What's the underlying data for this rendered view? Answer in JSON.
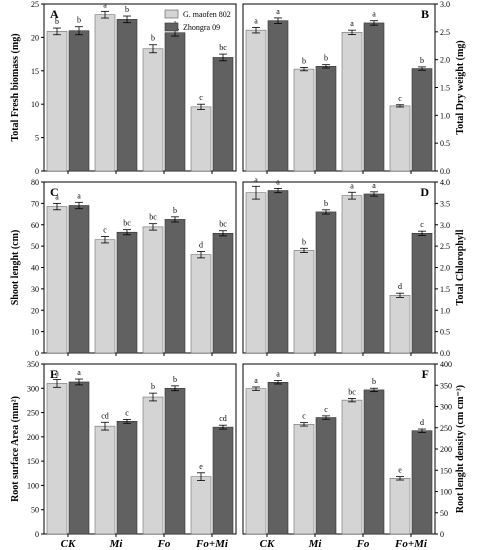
{
  "figure": {
    "categories": [
      "CK",
      "Mi",
      "Fo",
      "Fo+Mi"
    ],
    "legend": [
      "G. maofen 802",
      "Zhongra 09"
    ],
    "colors": {
      "light": "#d4d4d4",
      "dark": "#616161",
      "axis": "#000000"
    }
  },
  "chart_data": [
    {
      "type": "bar",
      "panel": "A",
      "side": "left",
      "ylabel": "Total Fresh biomass (mg)",
      "ylim": [
        0,
        25
      ],
      "yticks": [
        0,
        5,
        10,
        15,
        20,
        25
      ],
      "categories": [
        "CK",
        "Mi",
        "Fo",
        "Fo+Mi"
      ],
      "series": [
        {
          "name": "G. maofen 802",
          "values": [
            20.9,
            23.4,
            18.3,
            9.6
          ],
          "errors": [
            0.5,
            0.5,
            0.6,
            0.4
          ],
          "letters": [
            "b",
            "a",
            "b",
            "c"
          ]
        },
        {
          "name": "Zhongra 09",
          "values": [
            21.0,
            22.7,
            20.7,
            17.0
          ],
          "errors": [
            0.6,
            0.5,
            0.5,
            0.5
          ],
          "letters": [
            "b",
            "b",
            "a",
            "bc"
          ]
        }
      ]
    },
    {
      "type": "bar",
      "panel": "B",
      "side": "right",
      "ylabel": "Total Dry weight (mg)",
      "ylim": [
        0,
        3.0
      ],
      "yticks": [
        0.0,
        0.5,
        1.0,
        1.5,
        2.0,
        2.5,
        3.0
      ],
      "categories": [
        "CK",
        "Mi",
        "Fo",
        "Fo+Mi"
      ],
      "series": [
        {
          "name": "G. maofen 802",
          "values": [
            2.53,
            1.83,
            2.49,
            1.17
          ],
          "errors": [
            0.05,
            0.03,
            0.04,
            0.02
          ],
          "letters": [
            "a",
            "b",
            "a",
            "c"
          ]
        },
        {
          "name": "Zhongra 09",
          "values": [
            2.7,
            1.88,
            2.66,
            1.84
          ],
          "errors": [
            0.05,
            0.03,
            0.04,
            0.03
          ],
          "letters": [
            "a",
            "b",
            "a",
            "b"
          ]
        }
      ]
    },
    {
      "type": "bar",
      "panel": "C",
      "side": "left",
      "ylabel": "Shoot lenght (cm)",
      "ylim": [
        0,
        80
      ],
      "yticks": [
        0,
        10,
        20,
        30,
        40,
        50,
        60,
        70,
        80
      ],
      "categories": [
        "CK",
        "Mi",
        "Fo",
        "Fo+Mi"
      ],
      "series": [
        {
          "name": "G. maofen 802",
          "values": [
            68.5,
            53.0,
            59.0,
            46.0
          ],
          "errors": [
            1.5,
            1.5,
            1.5,
            1.5
          ],
          "letters": [
            "a",
            "c",
            "bc",
            "d"
          ]
        },
        {
          "name": "Zhongra 09",
          "values": [
            69.0,
            56.5,
            62.5,
            56.0
          ],
          "errors": [
            1.5,
            1.2,
            1.2,
            1.2
          ],
          "letters": [
            "a",
            "bc",
            "b",
            "bc"
          ]
        }
      ]
    },
    {
      "type": "bar",
      "panel": "D",
      "side": "right",
      "ylabel": "Total Chlorophyll",
      "ylim": [
        0,
        4.0
      ],
      "yticks": [
        0.0,
        0.5,
        1.0,
        1.5,
        2.0,
        2.5,
        3.0,
        3.5,
        4.0
      ],
      "categories": [
        "CK",
        "Mi",
        "Fo",
        "Fo+Mi"
      ],
      "series": [
        {
          "name": "G. maofen 802",
          "values": [
            3.75,
            2.4,
            3.68,
            1.35
          ],
          "errors": [
            0.15,
            0.05,
            0.08,
            0.05
          ],
          "letters": [
            "a",
            "b",
            "a",
            "d"
          ]
        },
        {
          "name": "Zhongra 09",
          "values": [
            3.8,
            3.3,
            3.72,
            2.8
          ],
          "errors": [
            0.05,
            0.05,
            0.05,
            0.05
          ],
          "letters": [
            "a",
            "b",
            "a",
            "c"
          ]
        }
      ]
    },
    {
      "type": "bar",
      "panel": "E",
      "side": "left",
      "ylabel": "Root surface Area (mm²)",
      "ylim": [
        0,
        350
      ],
      "yticks": [
        0,
        50,
        100,
        150,
        200,
        250,
        300,
        350
      ],
      "categories": [
        "CK",
        "Mi",
        "Fo",
        "Fo+Mi"
      ],
      "series": [
        {
          "name": "G. maofen 802",
          "values": [
            310,
            222,
            282,
            118
          ],
          "errors": [
            8,
            8,
            8,
            8
          ],
          "letters": [
            "a",
            "cd",
            "b",
            "e"
          ]
        },
        {
          "name": "Zhongra 09",
          "values": [
            313,
            232,
            300,
            220
          ],
          "errors": [
            6,
            4,
            5,
            4
          ],
          "letters": [
            "a",
            "c",
            "b",
            "cd"
          ]
        }
      ]
    },
    {
      "type": "bar",
      "panel": "F",
      "side": "right",
      "ylabel": "Root lenght density (cm cm⁻³)",
      "ylim": [
        0,
        400
      ],
      "yticks": [
        0,
        50,
        100,
        150,
        200,
        250,
        300,
        350,
        400
      ],
      "categories": [
        "CK",
        "Mi",
        "Fo",
        "Fo+Mi"
      ],
      "series": [
        {
          "name": "G. maofen 802",
          "values": [
            342,
            258,
            315,
            131
          ],
          "errors": [
            4,
            4,
            4,
            4
          ],
          "letters": [
            "a",
            "c",
            "bc",
            "e"
          ]
        },
        {
          "name": "Zhongra 09",
          "values": [
            357,
            274,
            339,
            243
          ],
          "errors": [
            4,
            4,
            4,
            4
          ],
          "letters": [
            "a",
            "c",
            "b",
            "d"
          ]
        }
      ]
    }
  ]
}
